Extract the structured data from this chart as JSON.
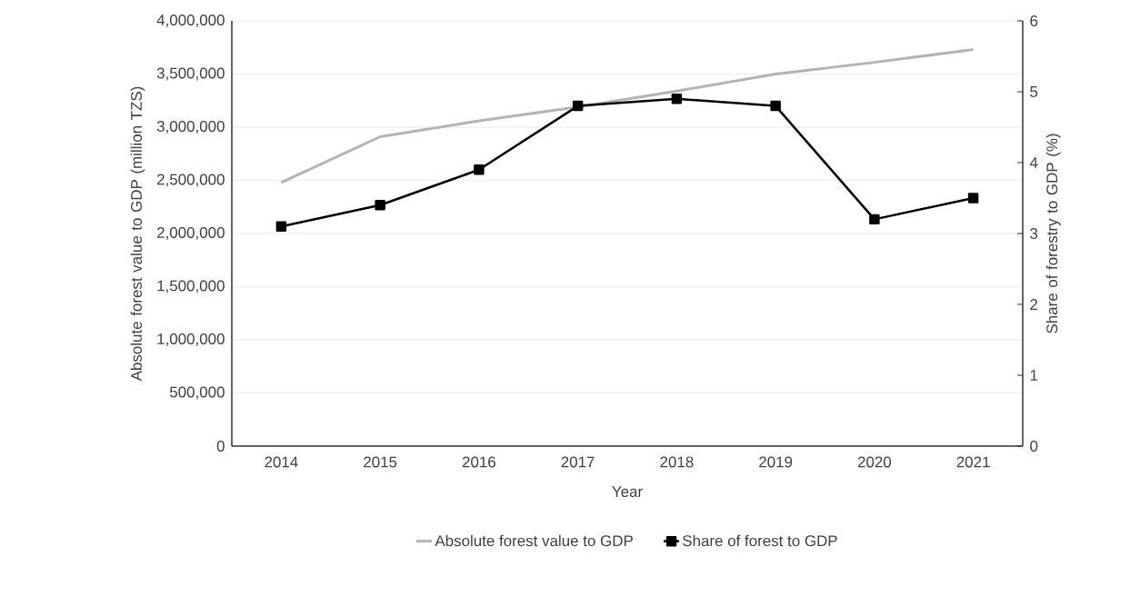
{
  "chart_data": {
    "type": "line",
    "xlabel": "Year",
    "ylabel": "Absolute  forest value to GDP (million TZS)",
    "y2label": "Share of forestry to GDP (%)",
    "categories": [
      "2014",
      "2015",
      "2016",
      "2017",
      "2018",
      "2019",
      "2020",
      "2021"
    ],
    "series": [
      {
        "name": "Absolute forest value to GDP",
        "color": "#b3b3b3",
        "marker": "none",
        "values": [
          2480000,
          2910000,
          3060000,
          3190000,
          3340000,
          3500000,
          3610000,
          3730000
        ]
      },
      {
        "name": "Share of forest to GDP",
        "color": "#000000",
        "marker": "square",
        "axis": "y2",
        "values": [
          3.1,
          3.4,
          3.9,
          4.8,
          4.9,
          4.8,
          3.2,
          3.5
        ]
      }
    ],
    "ylim": [
      0,
      4000000
    ],
    "yticks": [
      {
        "value": 0,
        "label": "0"
      },
      {
        "value": 500000,
        "label": "500,000"
      },
      {
        "value": 1000000,
        "label": "1,000,000"
      },
      {
        "value": 1500000,
        "label": "1,500,000"
      },
      {
        "value": 2000000,
        "label": "2,000,000"
      },
      {
        "value": 2500000,
        "label": "2,500,000"
      },
      {
        "value": 3000000,
        "label": "3,000,000"
      },
      {
        "value": 3500000,
        "label": "3,500,000"
      },
      {
        "value": 4000000,
        "label": "4,000,000"
      }
    ],
    "y2lim": [
      0,
      6
    ],
    "y2ticks": [
      0,
      1,
      2,
      3,
      4,
      5,
      6
    ],
    "grid": "y",
    "legend": "bottom"
  }
}
